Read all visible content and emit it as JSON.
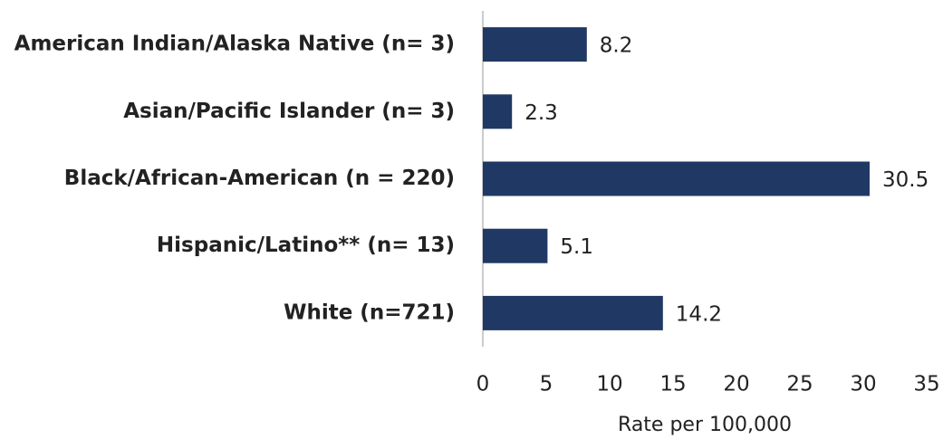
{
  "chart_data": {
    "type": "bar",
    "orientation": "horizontal",
    "categories": [
      "American Indian/Alaska Native (n= 3)",
      "Asian/Pacific Islander (n= 3)",
      "Black/African-American (n = 220)",
      "Hispanic/Latino** (n= 13)",
      "White (n=721)"
    ],
    "values": [
      8.2,
      2.3,
      30.5,
      5.1,
      14.2
    ],
    "color": "#203864",
    "xlabel": "Rate per 100,000",
    "xlim": [
      0,
      35
    ],
    "xticks": [
      0,
      5,
      10,
      15,
      20,
      25,
      30,
      35
    ],
    "grid": false
  }
}
